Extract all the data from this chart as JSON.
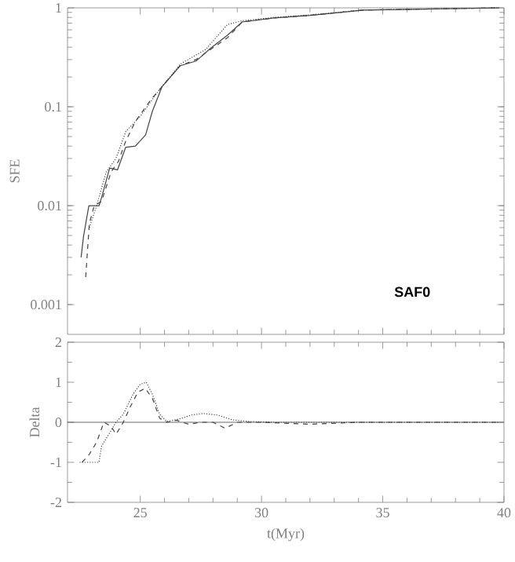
{
  "chart_data": [
    {
      "type": "line",
      "ylabel": "SFE",
      "log": "y",
      "xlim": [
        22,
        40
      ],
      "ylim": [
        0.0005,
        1
      ],
      "xticks": [
        25,
        30,
        35,
        40
      ],
      "yticks": [
        0.001,
        0.01,
        0.1,
        1
      ],
      "tick_labels": "y",
      "annotations": [
        "SAF0"
      ],
      "series": [
        {
          "color": "#444444",
          "line_style": "solid",
          "x": [
            22.56,
            22.66,
            22.88,
            23.3,
            23.4,
            23.74,
            24.06,
            24.4,
            24.8,
            25.22,
            25.5,
            25.9,
            26.65,
            27.3,
            27.9,
            28.6,
            29.2,
            30.5,
            32,
            34.2,
            39.8
          ],
          "values": [
            0.003,
            0.0049,
            0.01,
            0.01,
            0.012,
            0.024,
            0.023,
            0.039,
            0.04,
            0.052,
            0.09,
            0.16,
            0.26,
            0.29,
            0.39,
            0.53,
            0.72,
            0.79,
            0.84,
            0.95,
            1.0
          ]
        },
        {
          "color": "#444444",
          "line_style": "dashed",
          "x": [
            22.75,
            22.9,
            23.1,
            23.4,
            23.8,
            24.1,
            24.4,
            24.8,
            25.46,
            25.9,
            26.65,
            27.3,
            27.9,
            28.6,
            29.2,
            30.5,
            32,
            34.2,
            39.8
          ],
          "values": [
            0.0019,
            0.0066,
            0.01,
            0.011,
            0.022,
            0.028,
            0.045,
            0.071,
            0.12,
            0.16,
            0.26,
            0.3,
            0.38,
            0.5,
            0.72,
            0.79,
            0.84,
            0.95,
            1.0
          ]
        },
        {
          "color": "#444444",
          "line_style": "dotted",
          "x": [
            22.9,
            23.2,
            23.6,
            24.0,
            24.4,
            25.0,
            25.8,
            26.65,
            27.7,
            28.6,
            29.2,
            30.5,
            32,
            34.2,
            39.8
          ],
          "values": [
            0.006,
            0.01,
            0.022,
            0.03,
            0.056,
            0.08,
            0.15,
            0.27,
            0.38,
            0.68,
            0.74,
            0.8,
            0.85,
            0.95,
            1.0
          ]
        }
      ]
    },
    {
      "type": "line",
      "xlabel": "t(Myr)",
      "ylabel": "Delta",
      "xlim": [
        22,
        40
      ],
      "ylim": [
        -2,
        2
      ],
      "xticks": [
        25,
        30,
        35,
        40
      ],
      "yticks": [
        -2,
        -1,
        0,
        1,
        2
      ],
      "ref_lines": [
        {
          "axis": "y",
          "value": 0,
          "color": "#444444"
        }
      ],
      "series": [
        {
          "color": "#444444",
          "line_style": "dashed",
          "x": [
            22.6,
            22.9,
            23.2,
            23.5,
            23.8,
            24.0,
            24.3,
            24.6,
            24.9,
            25.2,
            25.5,
            25.8,
            26.1,
            26.5,
            27,
            27.5,
            28,
            28.5,
            29,
            30,
            32,
            34,
            36,
            38,
            39.8
          ],
          "values": [
            -1,
            -0.8,
            -0.5,
            0,
            -0.1,
            -0.3,
            0.0,
            0.4,
            0.75,
            0.85,
            0.6,
            0.1,
            0.0,
            0.05,
            -0.05,
            0.0,
            0.0,
            -0.15,
            0.0,
            0.0,
            -0.05,
            0.0,
            0.0,
            0.0,
            0.0
          ]
        },
        {
          "color": "#444444",
          "line_style": "dotted",
          "x": [
            22.5,
            23.3,
            23.4,
            23.7,
            24.0,
            24.3,
            24.7,
            25.0,
            25.25,
            25.5,
            25.8,
            26.1,
            26.6,
            27.1,
            27.6,
            28.2,
            28.8,
            29.5,
            30.5,
            33,
            36,
            39.8
          ],
          "values": [
            -1,
            -1,
            -0.6,
            -0.3,
            0,
            0.2,
            0.7,
            0.95,
            1.0,
            0.7,
            0.2,
            0.02,
            0.08,
            0.18,
            0.22,
            0.18,
            0.06,
            0.02,
            0,
            0,
            0,
            0
          ]
        }
      ]
    }
  ]
}
